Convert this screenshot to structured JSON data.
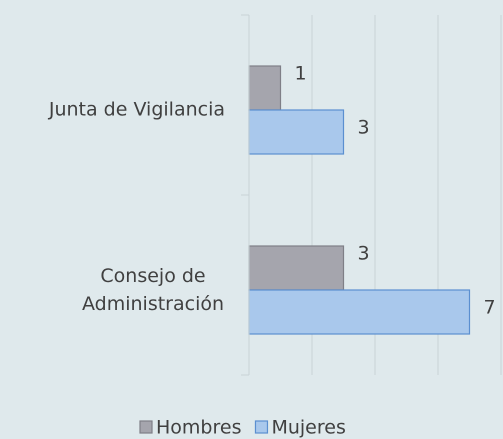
{
  "chart_data": {
    "type": "hbar",
    "categories": [
      "Junta de Vigilancia",
      "Consejo de Administración"
    ],
    "series": [
      {
        "name": "Hombres",
        "color": "#a5a5ad",
        "values": [
          1,
          3
        ]
      },
      {
        "name": "Mujeres",
        "color": "#a9c8ec",
        "values": [
          3,
          7
        ]
      }
    ],
    "xlim": [
      0,
      8
    ],
    "xticks": [
      0,
      2,
      4,
      6,
      8
    ],
    "tick_labels": false,
    "grid": true,
    "legend": "bottom"
  }
}
